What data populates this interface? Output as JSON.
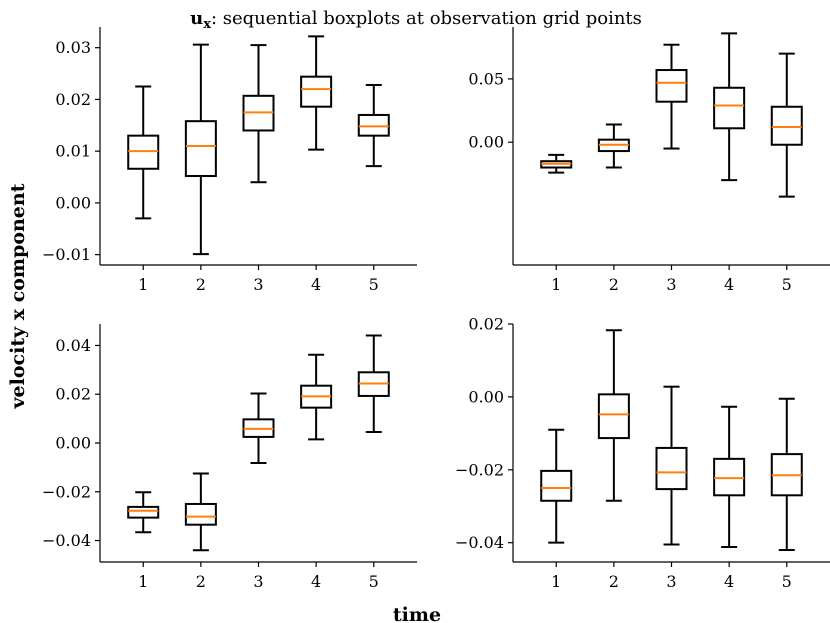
{
  "figure": {
    "title_prefix": "u",
    "title_subscript": "x",
    "title_rest": ": sequential boxplots at observation grid points",
    "xlabel": "time",
    "ylabel": "velocity x component"
  },
  "colors": {
    "box": "#000000",
    "median": "#ff7f0e",
    "axis": "#000000"
  },
  "chart_data": [
    {
      "type": "boxplot",
      "panel": "top-left",
      "categories": [
        "1",
        "2",
        "3",
        "4",
        "5"
      ],
      "ylim": [
        -0.012,
        0.034
      ],
      "yticks": [
        -0.01,
        0.0,
        0.01,
        0.02,
        0.03
      ],
      "ytick_labels": [
        "−0.01",
        "0.00",
        "0.01",
        "0.02",
        "0.03"
      ],
      "boxes": [
        {
          "whislo": -0.003,
          "q1": 0.0066,
          "med": 0.01,
          "q3": 0.013,
          "whishi": 0.0225
        },
        {
          "whislo": -0.0099,
          "q1": 0.0052,
          "med": 0.011,
          "q3": 0.0158,
          "whishi": 0.0306
        },
        {
          "whislo": 0.004,
          "q1": 0.014,
          "med": 0.0175,
          "q3": 0.0207,
          "whishi": 0.0305
        },
        {
          "whislo": 0.0103,
          "q1": 0.0186,
          "med": 0.022,
          "q3": 0.0244,
          "whishi": 0.0322
        },
        {
          "whislo": 0.0071,
          "q1": 0.013,
          "med": 0.0148,
          "q3": 0.017,
          "whishi": 0.0228
        }
      ]
    },
    {
      "type": "boxplot",
      "panel": "top-right",
      "categories": [
        "1",
        "2",
        "3",
        "4",
        "5"
      ],
      "ylim": [
        -0.097,
        0.091
      ],
      "yticks": [
        0.0,
        0.05
      ],
      "ytick_labels": [
        "0.00",
        "0.05"
      ],
      "boxes": [
        {
          "whislo": -0.024,
          "q1": -0.02,
          "med": -0.017,
          "q3": -0.015,
          "whishi": -0.01
        },
        {
          "whislo": -0.02,
          "q1": -0.007,
          "med": -0.002,
          "q3": 0.002,
          "whishi": 0.014
        },
        {
          "whislo": -0.005,
          "q1": 0.032,
          "med": 0.047,
          "q3": 0.057,
          "whishi": 0.077
        },
        {
          "whislo": -0.03,
          "q1": 0.011,
          "med": 0.029,
          "q3": 0.043,
          "whishi": 0.086
        },
        {
          "whislo": -0.043,
          "q1": -0.002,
          "med": 0.012,
          "q3": 0.028,
          "whishi": 0.07
        }
      ]
    },
    {
      "type": "boxplot",
      "panel": "bottom-left",
      "categories": [
        "1",
        "2",
        "3",
        "4",
        "5"
      ],
      "ylim": [
        -0.0488,
        0.0488
      ],
      "yticks": [
        -0.04,
        -0.02,
        0.0,
        0.02,
        0.04
      ],
      "ytick_labels": [
        "−0.04",
        "−0.02",
        "0.00",
        "0.02",
        "0.04"
      ],
      "boxes": [
        {
          "whislo": -0.0366,
          "q1": -0.0306,
          "med": -0.0278,
          "q3": -0.0262,
          "whishi": -0.0202
        },
        {
          "whislo": -0.044,
          "q1": -0.0335,
          "med": -0.0302,
          "q3": -0.025,
          "whishi": -0.0125
        },
        {
          "whislo": -0.0082,
          "q1": 0.0025,
          "med": 0.0058,
          "q3": 0.0097,
          "whishi": 0.0203
        },
        {
          "whislo": 0.0015,
          "q1": 0.0145,
          "med": 0.0191,
          "q3": 0.0235,
          "whishi": 0.0362
        },
        {
          "whislo": 0.0045,
          "q1": 0.0193,
          "med": 0.0244,
          "q3": 0.029,
          "whishi": 0.0441
        }
      ]
    },
    {
      "type": "boxplot",
      "panel": "bottom-right",
      "categories": [
        "1",
        "2",
        "3",
        "4",
        "5"
      ],
      "ylim": [
        -0.0453,
        0.02
      ],
      "yticks": [
        -0.04,
        -0.02,
        0.0,
        0.02
      ],
      "ytick_labels": [
        "−0.04",
        "−0.02",
        "0.00",
        "0.02"
      ],
      "boxes": [
        {
          "whislo": -0.04,
          "q1": -0.0285,
          "med": -0.025,
          "q3": -0.0203,
          "whishi": -0.009
        },
        {
          "whislo": -0.0285,
          "q1": -0.0113,
          "med": -0.0048,
          "q3": 0.0007,
          "whishi": 0.0183
        },
        {
          "whislo": -0.0405,
          "q1": -0.0253,
          "med": -0.0207,
          "q3": -0.014,
          "whishi": 0.0028
        },
        {
          "whislo": -0.0412,
          "q1": -0.027,
          "med": -0.0223,
          "q3": -0.017,
          "whishi": -0.0027
        },
        {
          "whislo": -0.042,
          "q1": -0.027,
          "med": -0.0215,
          "q3": -0.0157,
          "whishi": -0.0005
        }
      ]
    }
  ]
}
